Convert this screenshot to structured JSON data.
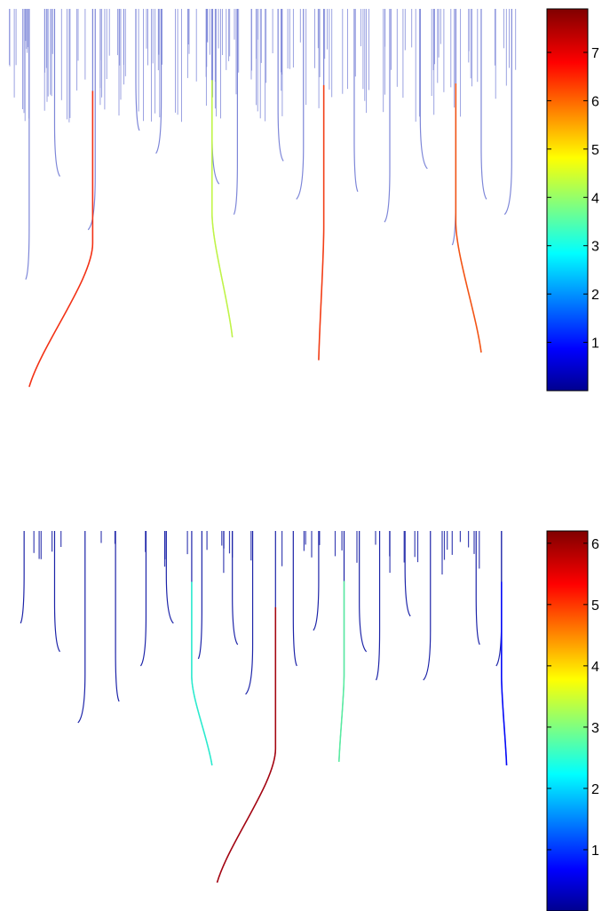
{
  "chart_data": [
    {
      "type": "heatmap",
      "title": "",
      "xlabel": "",
      "ylabel": "",
      "grid": false,
      "legend": "none",
      "colormap": "jet",
      "colorbar": {
        "range": [
          0,
          7.9
        ],
        "ticks": [
          1,
          2,
          3,
          4,
          5,
          6,
          7
        ]
      },
      "stroke_color": "#7d86d8",
      "fingers": [
        {
          "x": 0.04,
          "len": 0.69,
          "val": 0.6
        },
        {
          "x": 0.09,
          "len": 0.42,
          "val": 0.6
        },
        {
          "x": 0.17,
          "len": 0.56,
          "val": 0.7
        },
        {
          "x": 0.25,
          "len": 0.3,
          "val": 0.6
        },
        {
          "x": 0.3,
          "len": 0.36,
          "val": 0.6
        },
        {
          "x": 0.4,
          "len": 0.44,
          "val": 0.6
        },
        {
          "x": 0.45,
          "len": 0.52,
          "val": 0.8
        },
        {
          "x": 0.53,
          "len": 0.38,
          "val": 0.6
        },
        {
          "x": 0.58,
          "len": 0.48,
          "val": 0.7
        },
        {
          "x": 0.68,
          "len": 0.46,
          "val": 0.6
        },
        {
          "x": 0.75,
          "len": 0.54,
          "val": 0.7
        },
        {
          "x": 0.81,
          "len": 0.4,
          "val": 0.6
        },
        {
          "x": 0.88,
          "len": 0.6,
          "val": 0.7
        },
        {
          "x": 0.93,
          "len": 0.48,
          "val": 0.6
        },
        {
          "x": 0.99,
          "len": 0.52,
          "val": 0.6
        }
      ],
      "main_fingers": [
        {
          "x": 0.165,
          "tip": [
            0.04,
            0.99
          ],
          "val": 6.6
        },
        {
          "x": 0.4,
          "tip": [
            0.44,
            0.86
          ],
          "val": 4.5
        },
        {
          "x": 0.62,
          "tip": [
            0.61,
            0.92
          ],
          "val": 6.5
        },
        {
          "x": 0.88,
          "tip": [
            0.93,
            0.9
          ],
          "val": 6.3
        }
      ]
    },
    {
      "type": "heatmap",
      "title": "",
      "xlabel": "",
      "ylabel": "",
      "grid": false,
      "legend": "none",
      "colormap": "jet",
      "colorbar": {
        "range": [
          0,
          6.2
        ],
        "ticks": [
          1,
          2,
          3,
          4,
          5,
          6
        ]
      },
      "stroke_color": "#1c23a8",
      "fingers": [
        {
          "x": 0.03,
          "len": 0.24,
          "val": 0.4
        },
        {
          "x": 0.09,
          "len": 0.32,
          "val": 0.4
        },
        {
          "x": 0.15,
          "len": 0.52,
          "val": 0.5
        },
        {
          "x": 0.21,
          "len": 0.46,
          "val": 0.5
        },
        {
          "x": 0.27,
          "len": 0.36,
          "val": 0.5
        },
        {
          "x": 0.31,
          "len": 0.24,
          "val": 0.4
        },
        {
          "x": 0.38,
          "len": 0.34,
          "val": 0.5
        },
        {
          "x": 0.44,
          "len": 0.3,
          "val": 0.4
        },
        {
          "x": 0.48,
          "len": 0.44,
          "val": 0.5
        },
        {
          "x": 0.56,
          "len": 0.36,
          "val": 0.5
        },
        {
          "x": 0.61,
          "len": 0.26,
          "val": 0.4
        },
        {
          "x": 0.69,
          "len": 0.32,
          "val": 0.5
        },
        {
          "x": 0.73,
          "len": 0.4,
          "val": 0.5
        },
        {
          "x": 0.78,
          "len": 0.22,
          "val": 0.4
        },
        {
          "x": 0.83,
          "len": 0.4,
          "val": 0.5
        },
        {
          "x": 0.92,
          "len": 0.3,
          "val": 0.4
        },
        {
          "x": 0.97,
          "len": 0.36,
          "val": 0.5
        }
      ],
      "main_fingers": [
        {
          "x": 0.36,
          "tip": [
            0.4,
            0.66
          ],
          "val": 2.6
        },
        {
          "x": 0.525,
          "tip": [
            0.41,
            0.99
          ],
          "val": 5.9
        },
        {
          "x": 0.66,
          "tip": [
            0.65,
            0.65
          ],
          "val": 2.9
        },
        {
          "x": 0.97,
          "tip": [
            0.98,
            0.66
          ],
          "val": 0.8
        }
      ]
    }
  ]
}
